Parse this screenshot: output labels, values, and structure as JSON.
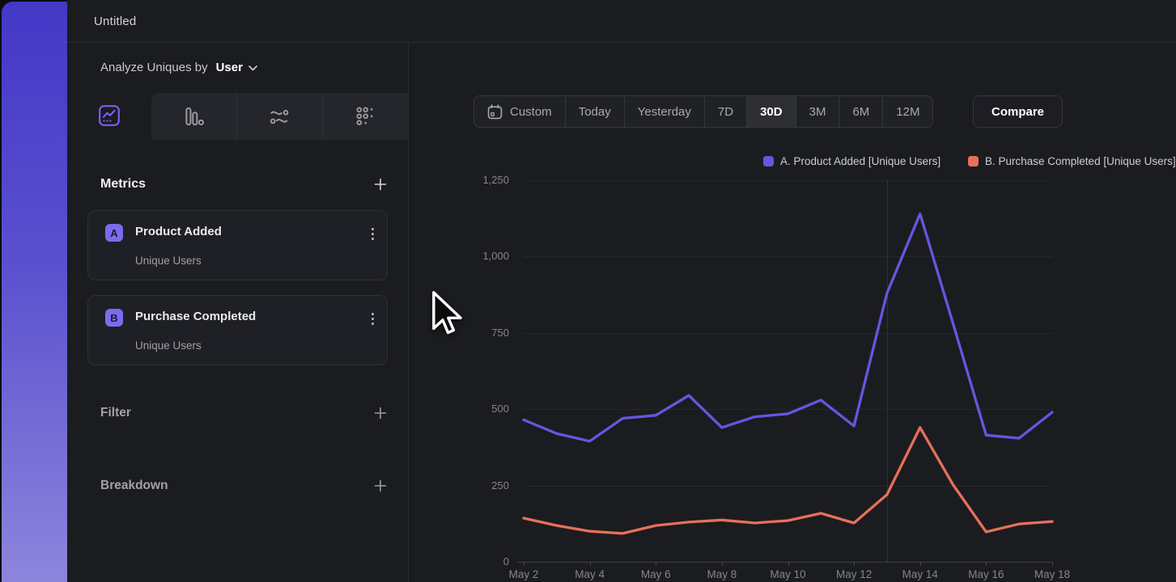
{
  "window": {
    "title": "Untitled"
  },
  "sidebar": {
    "analyze": {
      "prefix": "Analyze Uniques by",
      "value": "User"
    },
    "chart_type_tabs": [
      {
        "name": "insights-line",
        "selected": true
      },
      {
        "name": "funnels",
        "selected": false
      },
      {
        "name": "flows",
        "selected": false
      },
      {
        "name": "retention",
        "selected": false
      }
    ],
    "metrics": {
      "title": "Metrics",
      "items": [
        {
          "badge": "A",
          "title": "Product Added",
          "subtitle": "Unique Users"
        },
        {
          "badge": "B",
          "title": "Purchase Completed",
          "subtitle": "Unique Users"
        }
      ]
    },
    "filter": {
      "title": "Filter"
    },
    "breakdown": {
      "title": "Breakdown"
    }
  },
  "toolbar": {
    "ranges": [
      "Custom",
      "Today",
      "Yesterday",
      "7D",
      "30D",
      "3M",
      "6M",
      "12M"
    ],
    "selected": "30D",
    "compare_label": "Compare"
  },
  "legend": [
    {
      "label": "A. Product Added [Unique Users]",
      "color": "#6457e0"
    },
    {
      "label": "B. Purchase Completed [Unique Users]",
      "color": "#e8705a"
    }
  ],
  "accent_colors": {
    "purple": "#7c5ffa",
    "line_purple": "#6457e0",
    "line_orange": "#e8705a"
  },
  "chart_data": {
    "type": "line",
    "title": "",
    "x": [
      "May 2",
      "May 3",
      "May 4",
      "May 5",
      "May 6",
      "May 7",
      "May 8",
      "May 9",
      "May 10",
      "May 11",
      "May 12",
      "May 13",
      "May 14",
      "May 15",
      "May 16",
      "May 17",
      "May 18"
    ],
    "x_tick_step": 2,
    "series": [
      {
        "name": "A. Product Added [Unique Users]",
        "color": "#6457e0",
        "values": [
          465,
          420,
          395,
          470,
          480,
          545,
          440,
          475,
          485,
          530,
          445,
          880,
          1140,
          780,
          415,
          405,
          490
        ]
      },
      {
        "name": "B. Purchase Completed [Unique Users]",
        "color": "#e8705a",
        "values": [
          143,
          119,
          100,
          93,
          119,
          130,
          137,
          127,
          135,
          159,
          127,
          220,
          440,
          252,
          98,
          124,
          132
        ]
      }
    ],
    "ylim": [
      0,
      1250
    ],
    "yticks": [
      {
        "v": 0,
        "label": "0"
      },
      {
        "v": 250,
        "label": "250"
      },
      {
        "v": 500,
        "label": "500"
      },
      {
        "v": 750,
        "label": "750"
      },
      {
        "v": 1000,
        "label": "1,000"
      },
      {
        "v": 1250,
        "label": "1,250"
      }
    ],
    "vline_x": "May 13",
    "grid": "horizontal",
    "legend_position": "top-right"
  }
}
